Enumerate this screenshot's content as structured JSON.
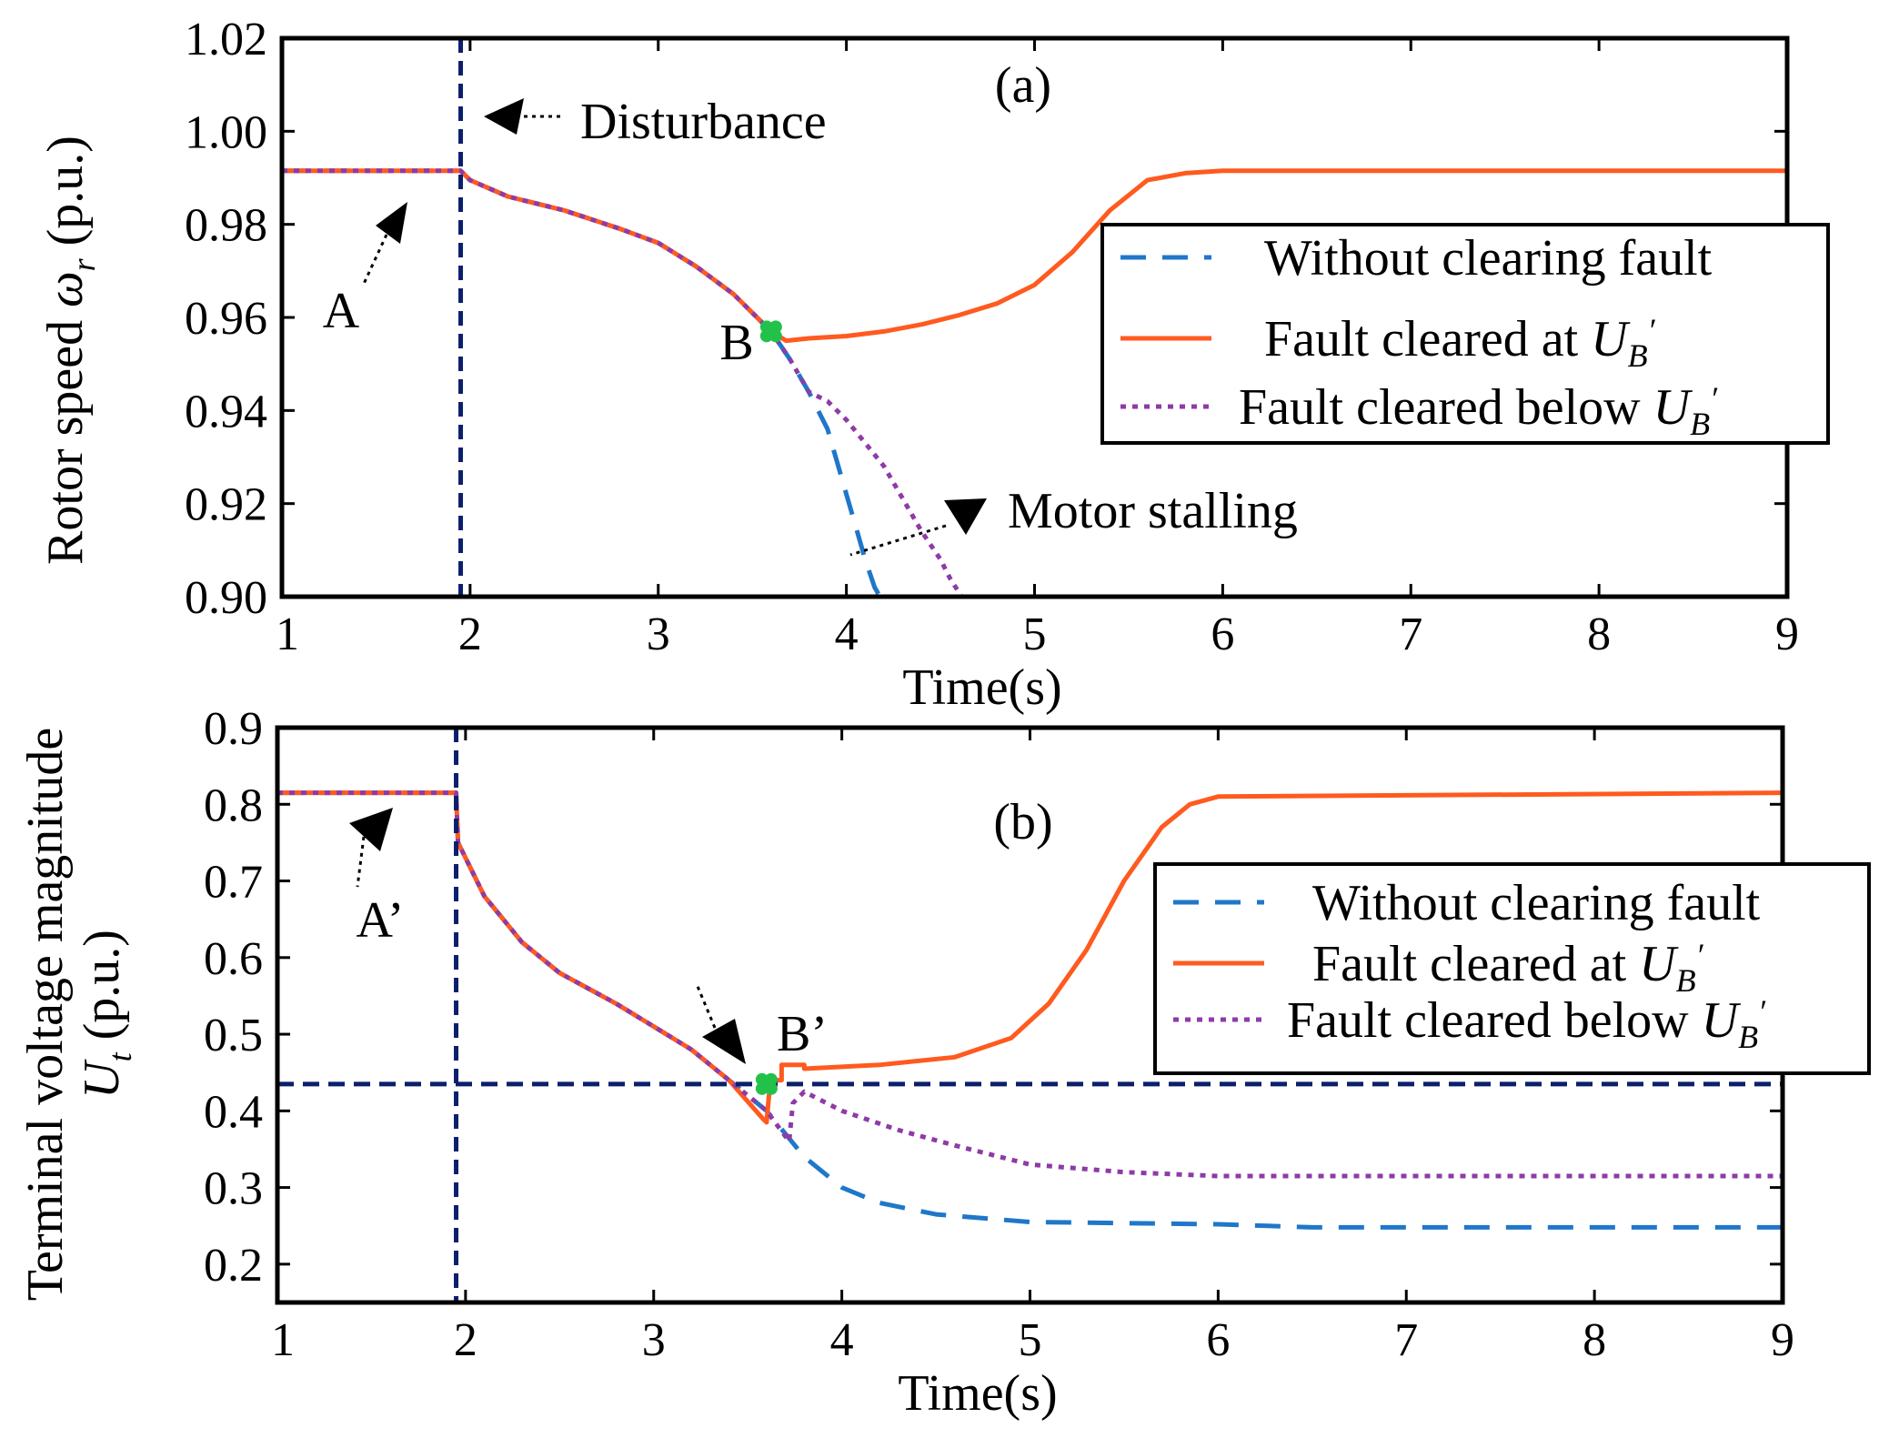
{
  "colors": {
    "without": "#1f77c9",
    "at": "#ff5a1f",
    "below": "#8e3ba6",
    "marker": "#22c24a",
    "guide": "#0b1f6b",
    "axis": "#000000"
  },
  "chart_data": [
    {
      "id": "a",
      "type": "line",
      "panel_label": "(a)",
      "xlabel": "Time(s)",
      "ylabel_main": "Rotor speed ",
      "ylabel_symbol": "ω",
      "ylabel_sub": "r",
      "ylabel_unit": " (p.u.)",
      "xlim": [
        1,
        9
      ],
      "ylim": [
        0.9,
        1.02
      ],
      "xticks": [
        "1",
        "2",
        "3",
        "4",
        "5",
        "6",
        "7",
        "8",
        "9"
      ],
      "yticks": [
        "0.90",
        "0.92",
        "0.94",
        "0.96",
        "0.98",
        "1.00",
        "1.02"
      ],
      "disturbance_time": 1.95,
      "annotations": {
        "disturbance": "Disturbance",
        "point_a": "A",
        "point_b": "B",
        "stalling": "Motor stalling"
      },
      "marker": {
        "x": 3.6,
        "y": 0.957
      },
      "legend": {
        "placement": "right-middle",
        "without": "Without clearing fault",
        "at": "Fault cleared at ",
        "below": "Fault cleared below ",
        "u_main": "U",
        "u_sub": "B",
        "u_prime": "′"
      },
      "series": [
        {
          "name": "Without clearing fault",
          "style": "dashed",
          "color_key": "without",
          "x": [
            1.0,
            1.95,
            2.0,
            2.2,
            2.5,
            2.8,
            3.0,
            3.2,
            3.4,
            3.6,
            3.7,
            3.8,
            3.9,
            3.95,
            4.0,
            4.05,
            4.1,
            4.15,
            4.2
          ],
          "y": [
            0.9915,
            0.9915,
            0.9895,
            0.986,
            0.983,
            0.979,
            0.976,
            0.971,
            0.965,
            0.957,
            0.951,
            0.944,
            0.936,
            0.929,
            0.922,
            0.915,
            0.908,
            0.902,
            0.8985
          ]
        },
        {
          "name": "Fault cleared at UB'",
          "style": "solid",
          "color_key": "at",
          "x": [
            1.0,
            1.95,
            2.0,
            2.2,
            2.5,
            2.8,
            3.0,
            3.2,
            3.4,
            3.6,
            3.68,
            3.8,
            4.0,
            4.2,
            4.4,
            4.6,
            4.8,
            5.0,
            5.2,
            5.4,
            5.6,
            5.8,
            6.0,
            9.0
          ],
          "y": [
            0.9915,
            0.9915,
            0.9895,
            0.986,
            0.983,
            0.979,
            0.976,
            0.971,
            0.965,
            0.957,
            0.955,
            0.9555,
            0.956,
            0.957,
            0.9585,
            0.9605,
            0.963,
            0.967,
            0.974,
            0.983,
            0.9895,
            0.991,
            0.9915,
            0.9915
          ]
        },
        {
          "name": "Fault cleared below UB'",
          "style": "dotted",
          "color_key": "below",
          "x": [
            1.0,
            1.95,
            2.0,
            2.2,
            2.5,
            2.8,
            3.0,
            3.2,
            3.4,
            3.6,
            3.7,
            3.8,
            3.9,
            4.0,
            4.1,
            4.2,
            4.3,
            4.4,
            4.5,
            4.55,
            4.62
          ],
          "y": [
            0.9915,
            0.9915,
            0.9895,
            0.986,
            0.983,
            0.979,
            0.976,
            0.971,
            0.965,
            0.957,
            0.951,
            0.944,
            0.942,
            0.938,
            0.933,
            0.928,
            0.921,
            0.914,
            0.908,
            0.904,
            0.8995
          ]
        }
      ]
    },
    {
      "id": "b",
      "type": "line",
      "panel_label": "(b)",
      "xlabel": "Time(s)",
      "ylabel_line1": "Terminal voltage magnitude",
      "ylabel_symbol": "U",
      "ylabel_sub": "t",
      "ylabel_unit": " (p.u.)",
      "xlim": [
        1,
        9
      ],
      "ylim": [
        0.15,
        0.9
      ],
      "xticks": [
        "1",
        "2",
        "3",
        "4",
        "5",
        "6",
        "7",
        "8",
        "9"
      ],
      "yticks": [
        "0.2",
        "0.3",
        "0.4",
        "0.5",
        "0.6",
        "0.7",
        "0.8",
        "0.9"
      ],
      "disturbance_time": 1.95,
      "threshold": 0.435,
      "annotations": {
        "point_a": "A’",
        "point_b": "B’"
      },
      "marker": {
        "x": 3.6,
        "y": 0.435
      },
      "legend": {
        "placement": "right-middle",
        "without": "Without clearing fault",
        "at": "Fault cleared at ",
        "below": "Fault cleared below ",
        "u_main": "U",
        "u_sub": "B",
        "u_prime": "′"
      },
      "series": [
        {
          "name": "Without clearing fault",
          "style": "dashed",
          "color_key": "without",
          "x": [
            1.0,
            1.95,
            1.96,
            2.1,
            2.3,
            2.5,
            2.8,
            3.0,
            3.2,
            3.4,
            3.6,
            3.8,
            4.0,
            4.2,
            4.5,
            5.0,
            6.0,
            6.5,
            9.0
          ],
          "y": [
            0.815,
            0.815,
            0.75,
            0.68,
            0.62,
            0.58,
            0.54,
            0.51,
            0.48,
            0.44,
            0.4,
            0.34,
            0.3,
            0.28,
            0.265,
            0.255,
            0.252,
            0.248,
            0.248
          ]
        },
        {
          "name": "Fault cleared at UB'",
          "style": "solid",
          "color_key": "at",
          "x": [
            1.0,
            1.95,
            1.96,
            2.1,
            2.3,
            2.5,
            2.8,
            3.0,
            3.2,
            3.4,
            3.58,
            3.6,
            3.62,
            3.68,
            3.68,
            3.8,
            3.8,
            4.2,
            4.6,
            4.9,
            5.1,
            5.3,
            5.5,
            5.7,
            5.85,
            6.0,
            9.0
          ],
          "y": [
            0.815,
            0.815,
            0.75,
            0.68,
            0.62,
            0.58,
            0.54,
            0.51,
            0.48,
            0.44,
            0.39,
            0.385,
            0.44,
            0.44,
            0.46,
            0.46,
            0.455,
            0.46,
            0.47,
            0.495,
            0.54,
            0.61,
            0.7,
            0.77,
            0.8,
            0.81,
            0.815
          ]
        },
        {
          "name": "Fault cleared below UB'",
          "style": "dotted",
          "color_key": "below",
          "x": [
            1.0,
            1.95,
            1.96,
            2.1,
            2.3,
            2.5,
            2.8,
            3.0,
            3.2,
            3.4,
            3.6,
            3.72,
            3.74,
            3.8,
            4.0,
            4.3,
            4.6,
            5.0,
            5.5,
            6.0,
            7.0,
            9.0
          ],
          "y": [
            0.815,
            0.815,
            0.75,
            0.68,
            0.62,
            0.58,
            0.54,
            0.51,
            0.48,
            0.44,
            0.4,
            0.36,
            0.41,
            0.425,
            0.4,
            0.375,
            0.355,
            0.33,
            0.32,
            0.315,
            0.315,
            0.315
          ]
        }
      ]
    }
  ]
}
